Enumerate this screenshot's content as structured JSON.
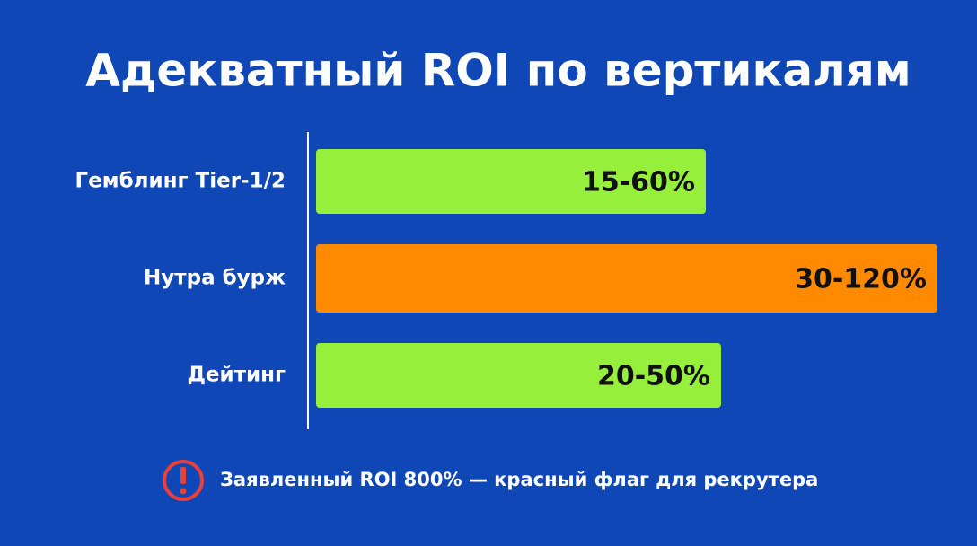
{
  "title": "Адекватный ROI по вертикалям",
  "rows": [
    {
      "label": "Гемблинг Tier-1/2",
      "value": "15-60%",
      "color": "#96ef3a"
    },
    {
      "label": "Нутра бурж",
      "value": "30-120%",
      "color": "#ff8a00"
    },
    {
      "label": "Дейтинг",
      "value": "20-50%",
      "color": "#96ef3a"
    }
  ],
  "note": "Заявленный ROI 800% — красный флаг для рекрутера"
}
